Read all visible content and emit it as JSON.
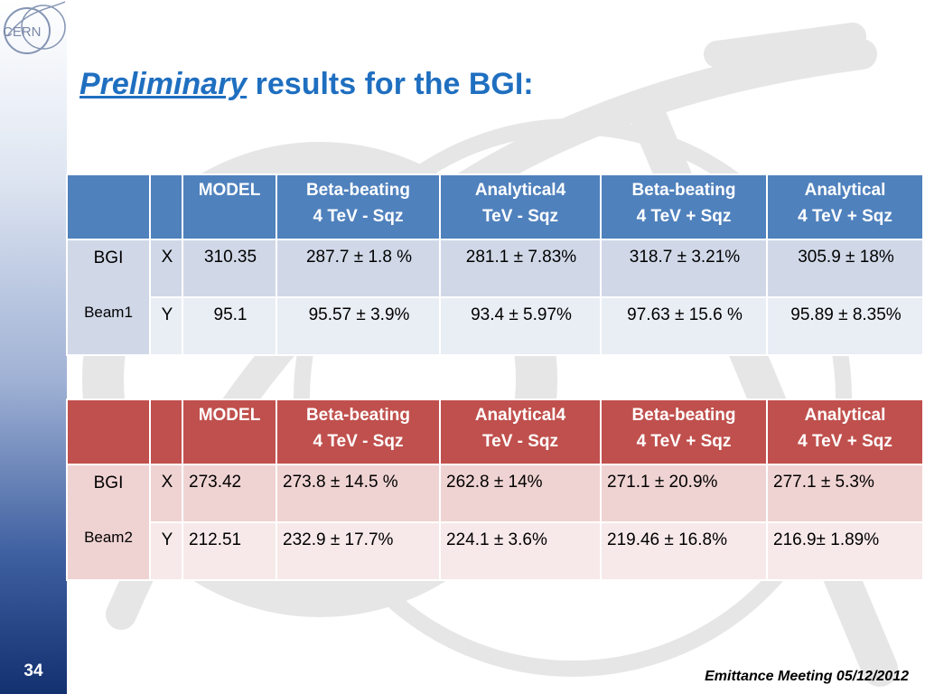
{
  "slide": {
    "logo_text": "CERN",
    "page_number": "34",
    "footer": "Emittance Meeting 05/12/2012",
    "title_emphasis": "Preliminary",
    "title_rest": " results for the BGI:",
    "colors": {
      "title": "#1f6fc0",
      "table1_header": "#4f81bd",
      "table2_header": "#c0504d"
    }
  },
  "table_headers": {
    "model": "MODEL",
    "c1_l1": "Beta-beating",
    "c1_l2": "4 TeV - Sqz",
    "c2_l1": "Analytical4",
    "c2_l2": "TeV - Sqz",
    "c3_l1": "Beta-beating",
    "c3_l2": "4 TeV + Sqz",
    "c4_l1": "Analytical",
    "c4_l2": "4 TeV + Sqz"
  },
  "beam1": {
    "label_top": "BGI",
    "label_bottom": "Beam1",
    "rows": [
      {
        "axis": "X",
        "model": "310.35",
        "c1": "287.7 ± 1.8 %",
        "c2": "281.1 ± 7.83%",
        "c3": "318.7 ± 3.21%",
        "c4": "305.9 ± 18%"
      },
      {
        "axis": "Y",
        "model": "95.1",
        "c1": "95.57  ± 3.9%",
        "c2": "93.4  ± 5.97%",
        "c3": "97.63 ± 15.6 %",
        "c4": "95.89 ± 8.35%"
      }
    ]
  },
  "beam2": {
    "label_top": "BGI",
    "label_bottom": "Beam2",
    "rows": [
      {
        "axis": "X",
        "model": "273.42",
        "c1": "273.8 ± 14.5 %",
        "c2": "262.8 ± 14%",
        "c3": "271.1 ± 20.9%",
        "c4": "277.1 ± 5.3%"
      },
      {
        "axis": "Y",
        "model": "212.51",
        "c1": "232.9  ± 17.7%",
        "c2": "224.1  ± 3.6%",
        "c3": "219.46 ± 16.8%",
        "c4": "216.9± 1.89%"
      }
    ]
  }
}
